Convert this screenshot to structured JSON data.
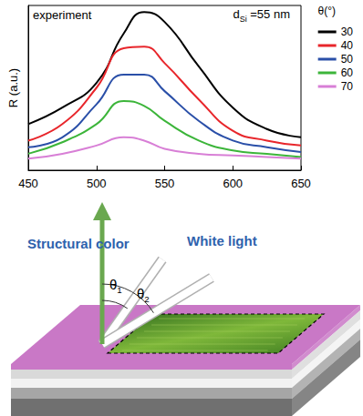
{
  "chart_data": {
    "type": "line",
    "annotations": [
      {
        "text": "experiment"
      },
      {
        "text": "d",
        "subscript": "Si",
        "suffix": " =55 nm"
      }
    ],
    "y_label": "R (a.u.)",
    "legend_title": "θ(°)",
    "x": [
      450,
      475,
      500,
      520,
      535,
      550,
      575,
      600,
      625,
      650
    ],
    "series": [
      {
        "name": "30",
        "color": "#000000",
        "values": [
          0.28,
          0.38,
          0.53,
          0.83,
          0.96,
          0.9,
          0.63,
          0.38,
          0.25,
          0.2
        ]
      },
      {
        "name": "40",
        "color": "#e8262b",
        "values": [
          0.18,
          0.28,
          0.5,
          0.74,
          0.75,
          0.65,
          0.43,
          0.24,
          0.18,
          0.15
        ]
      },
      {
        "name": "50",
        "color": "#2a4fa8",
        "values": [
          0.14,
          0.2,
          0.4,
          0.58,
          0.58,
          0.48,
          0.3,
          0.18,
          0.14,
          0.11
        ]
      },
      {
        "name": "60",
        "color": "#3cb53a",
        "values": [
          0.1,
          0.17,
          0.28,
          0.42,
          0.39,
          0.3,
          0.18,
          0.12,
          0.1,
          0.08
        ]
      },
      {
        "name": "70",
        "color": "#d87fd6",
        "values": [
          0.07,
          0.1,
          0.15,
          0.2,
          0.18,
          0.13,
          0.1,
          0.09,
          0.08,
          0.07
        ]
      }
    ],
    "xlim": [
      450,
      650
    ],
    "xticks": [
      450,
      500,
      550,
      600,
      650
    ],
    "ylim": [
      0,
      1
    ],
    "tick_labels": "x",
    "legend": "right",
    "grid": false
  },
  "diagram": {
    "reflected_label": "Structural color",
    "incident_label": "White light",
    "angles": [
      {
        "text": "θ",
        "subscript": "1"
      },
      {
        "text": "θ",
        "subscript": "2"
      }
    ]
  }
}
